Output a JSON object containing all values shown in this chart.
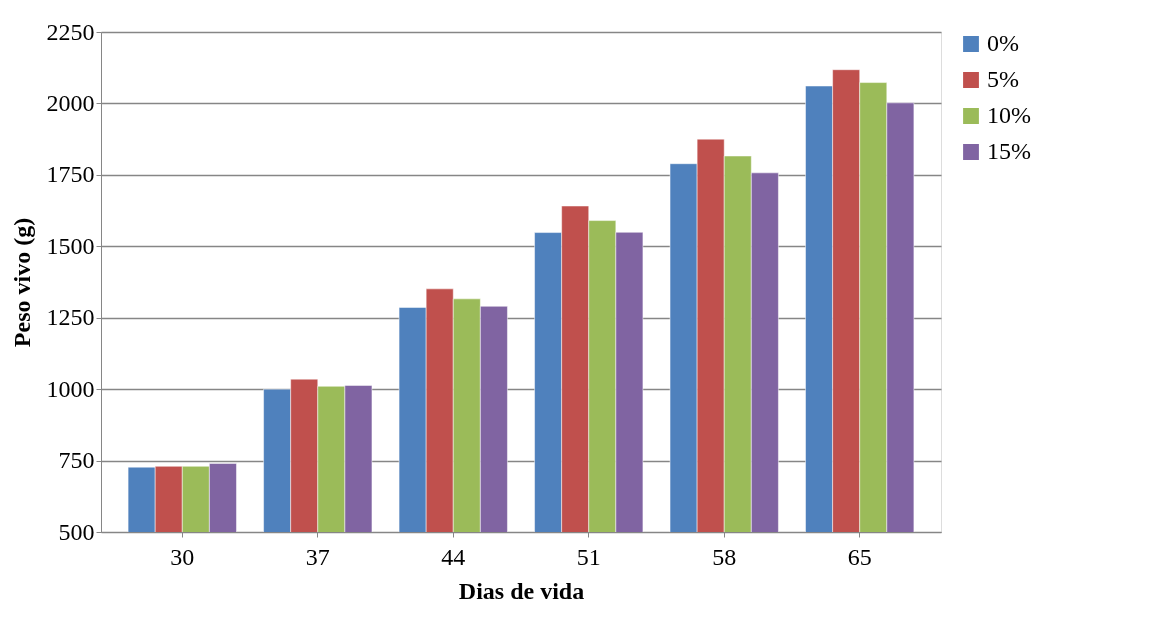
{
  "chart_data": {
    "type": "bar",
    "xlabel": "Dias de vida",
    "ylabel": "Peso vivo (g)",
    "categories": [
      "30",
      "37",
      "44",
      "51",
      "58",
      "65"
    ],
    "series": [
      {
        "name": "0%",
        "color": "#4f81bd",
        "values": [
          727,
          1000,
          1286,
          1548,
          1789,
          2061
        ]
      },
      {
        "name": "5%",
        "color": "#c0504d",
        "values": [
          730,
          1035,
          1351,
          1641,
          1875,
          2118
        ]
      },
      {
        "name": "10%",
        "color": "#9bbb59",
        "values": [
          730,
          1010,
          1316,
          1590,
          1816,
          2073
        ]
      },
      {
        "name": "15%",
        "color": "#8064a2",
        "values": [
          740,
          1013,
          1290,
          1549,
          1757,
          2002
        ]
      }
    ],
    "ylim": [
      500,
      2250
    ],
    "yticks": [
      500,
      750,
      1000,
      1250,
      1500,
      1750,
      2000,
      2250
    ],
    "grid": "y",
    "legend": "right"
  }
}
